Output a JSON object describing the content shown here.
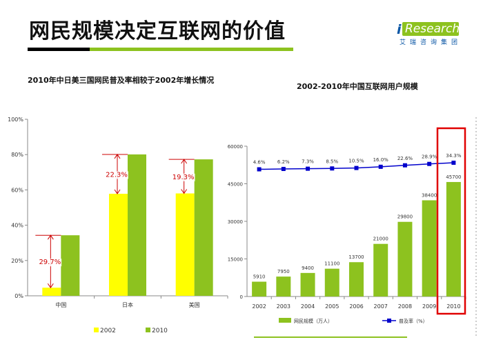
{
  "slide": {
    "title": "网民规模决定互联网的价值",
    "logo_text": "Research",
    "logo_i": "i",
    "logo_sub": "艾瑞咨询集团"
  },
  "chart_data": [
    {
      "type": "bar",
      "title": "2010年中日美三国网民普及率相较于2002年增长情况",
      "categories": [
        "中国",
        "日本",
        "美国"
      ],
      "series": [
        {
          "name": "2002",
          "values": [
            4.6,
            57.8,
            58.0
          ],
          "color": "#ffff00"
        },
        {
          "name": "2010",
          "values": [
            34.3,
            80.1,
            77.3
          ],
          "color": "#8dc21f"
        }
      ],
      "annotations": [
        "29.7%",
        "22.3%",
        "19.3%"
      ],
      "y_ticks": [
        "0%",
        "20%",
        "40%",
        "60%",
        "80%",
        "100%"
      ],
      "ylim": [
        0,
        100
      ],
      "legend": "bottom"
    },
    {
      "type": "bar+line",
      "title": "2002-2010年中国互联网用户规模",
      "categories": [
        "2002",
        "2003",
        "2004",
        "2005",
        "2006",
        "2007",
        "2008",
        "2009",
        "2010"
      ],
      "series": [
        {
          "name": "网民规模（万人）",
          "type": "bar",
          "values": [
            5910,
            7950,
            9400,
            11100,
            13700,
            21000,
            29800,
            38400,
            45700
          ],
          "color": "#8dc21f"
        },
        {
          "name": "普及率（%）",
          "type": "line",
          "values": [
            4.6,
            6.2,
            7.3,
            8.5,
            10.5,
            16.0,
            22.6,
            28.9,
            34.3
          ],
          "labels": [
            "4.6%",
            "6.2%",
            "7.3%",
            "8.5%",
            "10.5%",
            "16.0%",
            "22.6%",
            "28.9%",
            "34.3%"
          ],
          "color": "#0000cc"
        }
      ],
      "bar_labels": [
        "5910",
        "7950",
        "9400",
        "11100",
        "13700",
        "21000",
        "29800",
        "38400",
        "45700"
      ],
      "y_ticks": [
        "0",
        "15000",
        "30000",
        "45000",
        "60000"
      ],
      "ylim": [
        0,
        60000
      ],
      "highlight": "2010",
      "legend": "bottom"
    }
  ]
}
